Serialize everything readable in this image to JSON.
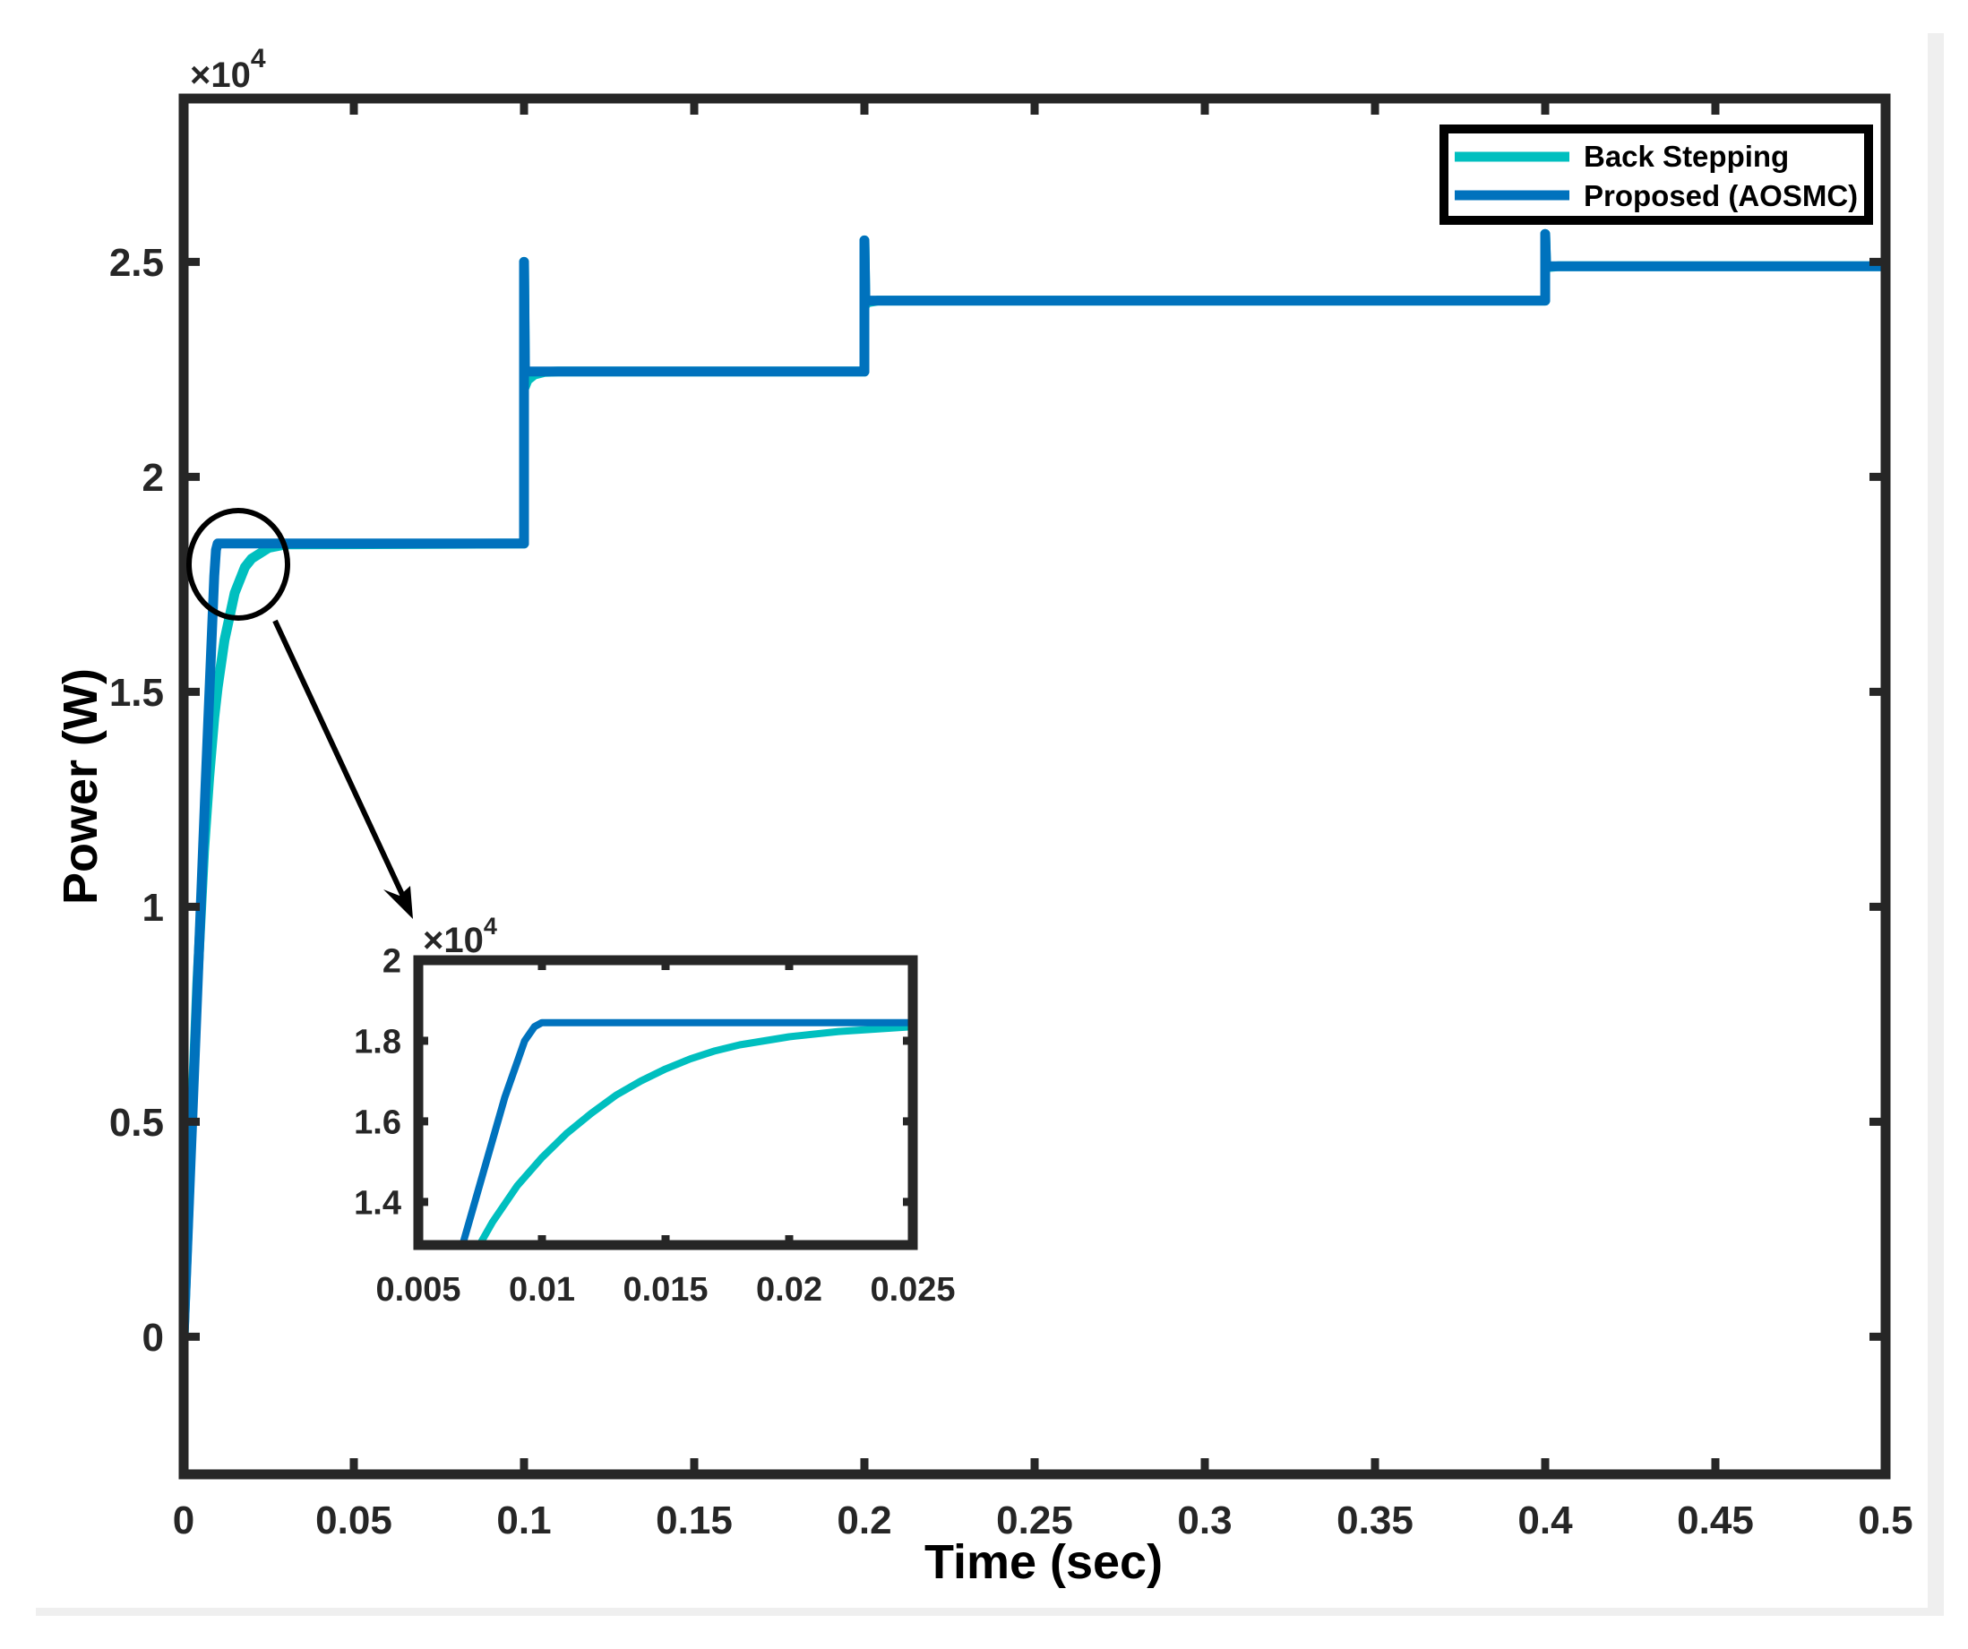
{
  "figure": {
    "background": "#ffffff",
    "border_color": "#efefef"
  },
  "colors": {
    "back_stepping": "#00BFBF",
    "proposed": "#0072BD",
    "axis": "#262626",
    "annotation": "#000000"
  },
  "chart_data": [
    {
      "id": "main",
      "type": "line",
      "title": "",
      "xlabel": "Time (sec)",
      "ylabel": "Power (W)",
      "y_exponent_label": "×10",
      "y_exponent": "4",
      "xlim": [
        0,
        0.5
      ],
      "ylim": [
        -3200,
        28800
      ],
      "xticks": [
        0,
        0.05,
        0.1,
        0.15,
        0.2,
        0.25,
        0.3,
        0.35,
        0.4,
        0.45,
        0.5
      ],
      "xtick_labels": [
        "0",
        "0.05",
        "0.1",
        "0.15",
        "0.2",
        "0.25",
        "0.3",
        "0.35",
        "0.4",
        "0.45",
        "0.5"
      ],
      "yticks": [
        0,
        5000,
        10000,
        15000,
        20000,
        25000
      ],
      "ytick_labels": [
        "0",
        "0.5",
        "1",
        "1.5",
        "2",
        "2.5"
      ],
      "grid": false,
      "legend": {
        "position": "northeast",
        "entries": [
          "Back Stepping",
          "Proposed (AOSMC)"
        ]
      },
      "series": [
        {
          "name": "Back Stepping",
          "color": "#00BFBF",
          "x": [
            0,
            0.002,
            0.004,
            0.006,
            0.0075,
            0.009,
            0.01,
            0.012,
            0.015,
            0.018,
            0.02,
            0.025,
            0.03,
            0.1,
            0.1,
            0.1003,
            0.101,
            0.103,
            0.106,
            0.11,
            0.2,
            0.2,
            0.2003,
            0.201,
            0.204,
            0.4,
            0.4,
            0.4003,
            0.401,
            0.404,
            0.5
          ],
          "y": [
            0,
            4200,
            8200,
            11300,
            13000,
            14400,
            15100,
            16200,
            17300,
            17900,
            18100,
            18350,
            18430,
            18450,
            25000,
            22100,
            22250,
            22380,
            22440,
            22450,
            22450,
            25500,
            24000,
            24060,
            24100,
            24100,
            25650,
            24850,
            24880,
            24900,
            24900
          ]
        },
        {
          "name": "Proposed (AOSMC)",
          "color": "#0072BD",
          "x": [
            0,
            0.0065,
            0.009,
            0.0095,
            0.01,
            0.1,
            0.1,
            0.1003,
            0.2,
            0.2,
            0.2003,
            0.4,
            0.4,
            0.4003,
            0.5
          ],
          "y": [
            0,
            12950,
            17700,
            18300,
            18450,
            18450,
            25000,
            22450,
            22450,
            25500,
            24100,
            24100,
            25650,
            24900,
            24900
          ]
        }
      ],
      "annotations": [
        {
          "type": "ellipse",
          "description": "zoom region circle",
          "center_t": 0.0016,
          "center_p": 17900
        },
        {
          "type": "arrow",
          "description": "arrow from circle to inset"
        }
      ]
    },
    {
      "id": "inset",
      "type": "line",
      "title": "",
      "xlabel": "",
      "ylabel": "",
      "y_exponent_label": "×10",
      "y_exponent": "4",
      "xlim": [
        0.005,
        0.025
      ],
      "ylim": [
        12930,
        20000
      ],
      "xticks": [
        0.005,
        0.01,
        0.015,
        0.02,
        0.025
      ],
      "xtick_labels": [
        "0.005",
        "0.01",
        "0.015",
        "0.02",
        "0.025"
      ],
      "yticks": [
        14000,
        16000,
        18000,
        20000
      ],
      "ytick_labels": [
        "1.4",
        "1.6",
        "1.8",
        "2"
      ],
      "grid": false,
      "series": [
        {
          "name": "Back Stepping",
          "color": "#00BFBF",
          "x": [
            0.0075,
            0.008,
            0.009,
            0.01,
            0.011,
            0.012,
            0.013,
            0.014,
            0.015,
            0.016,
            0.017,
            0.018,
            0.019,
            0.02,
            0.022,
            0.025
          ],
          "y": [
            12960,
            13500,
            14400,
            15100,
            15700,
            16200,
            16650,
            17000,
            17300,
            17550,
            17750,
            17900,
            18000,
            18100,
            18230,
            18350
          ]
        },
        {
          "name": "Proposed (AOSMC)",
          "color": "#0072BD",
          "x": [
            0.0068,
            0.0085,
            0.0093,
            0.0097,
            0.01,
            0.025
          ],
          "y": [
            12960,
            16600,
            18000,
            18350,
            18450,
            18450
          ]
        }
      ]
    }
  ]
}
